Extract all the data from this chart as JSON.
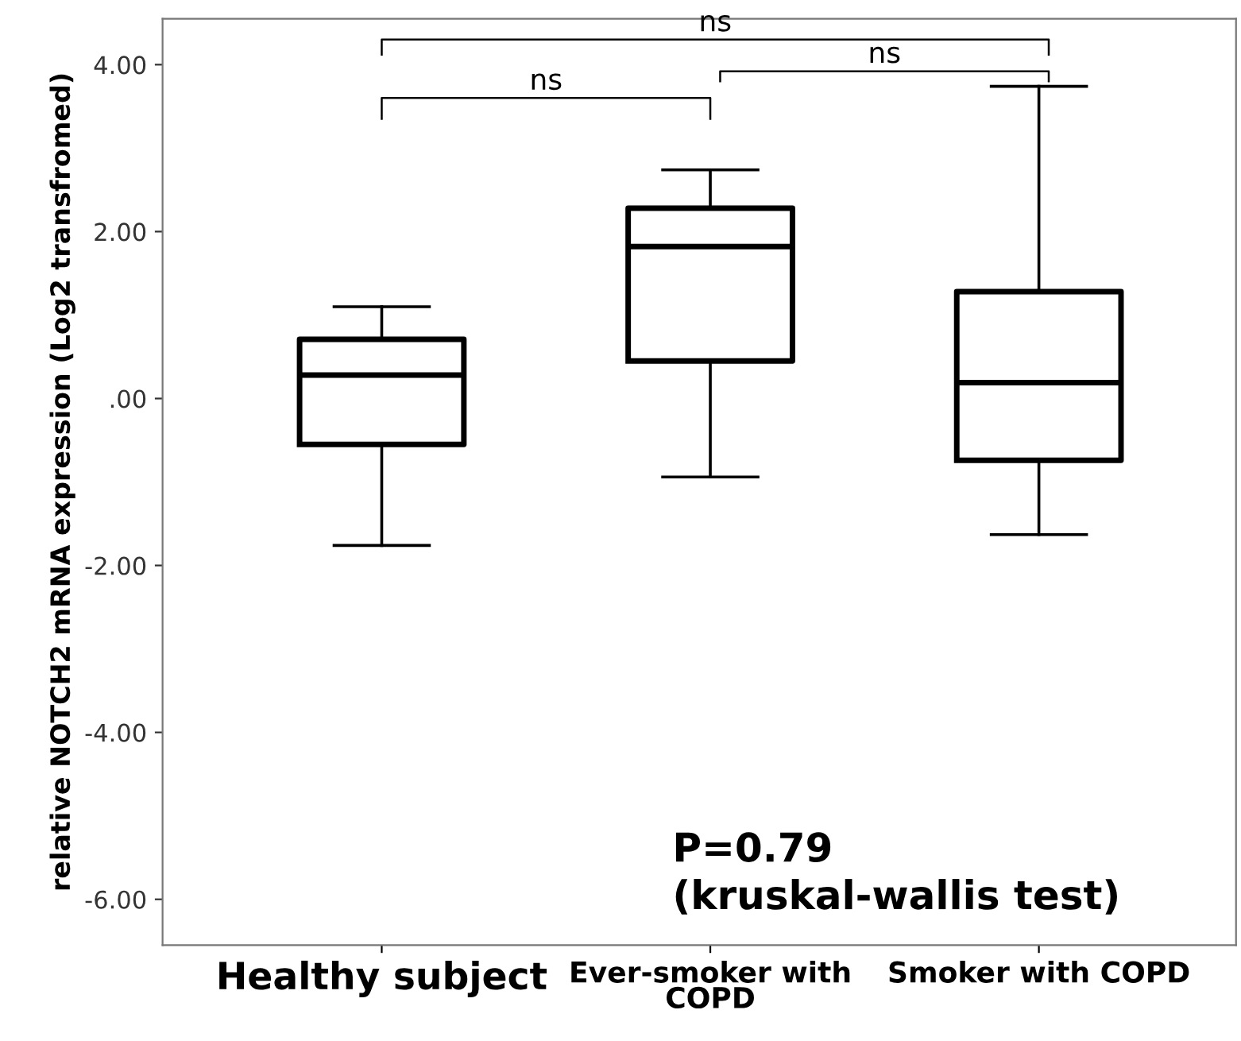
{
  "chart_data": {
    "type": "box",
    "ylabel": "relative NOTCH2 mRNA expression (Log2 transfromed)",
    "categories": [
      "Healthy subject",
      "Ever-smoker with\nCOPD",
      "Smoker with COPD"
    ],
    "boxes": [
      {
        "low": -1.76,
        "q1": -0.55,
        "median": 0.28,
        "q3": 0.71,
        "high": 1.1
      },
      {
        "low": -0.94,
        "q1": 0.45,
        "median": 1.82,
        "q3": 2.28,
        "high": 2.74
      },
      {
        "low": -1.63,
        "q1": -0.74,
        "median": 0.19,
        "q3": 1.28,
        "high": 3.74
      }
    ],
    "ylim": [
      -6.55,
      4.55
    ],
    "yticks": [
      {
        "value": -6,
        "label": "-6.00"
      },
      {
        "value": -4,
        "label": "-4.00"
      },
      {
        "value": -2,
        "label": "-2.00"
      },
      {
        "value": 0,
        "label": ".00"
      },
      {
        "value": 2,
        "label": "2.00"
      },
      {
        "value": 4,
        "label": "4.00"
      }
    ],
    "annotations": [
      "ns",
      "ns",
      "ns",
      "P=0.79\n(kruskal-wallis test)"
    ],
    "grid": false
  }
}
